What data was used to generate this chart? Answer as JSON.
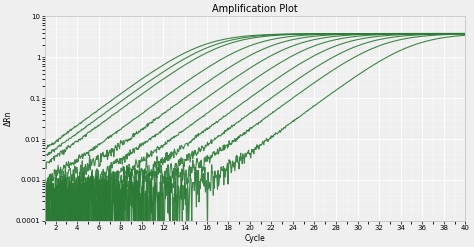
{
  "title": "Amplification Plot",
  "xlabel": "Cycle",
  "ylabel": "ΔRn",
  "xlim": [
    1,
    40
  ],
  "ylim": [
    0.0001,
    10
  ],
  "xticks": [
    2,
    4,
    6,
    8,
    10,
    12,
    14,
    16,
    18,
    20,
    22,
    24,
    26,
    28,
    30,
    32,
    34,
    36,
    38,
    40
  ],
  "yticks": [
    0.0001,
    0.001,
    0.01,
    0.1,
    1,
    10
  ],
  "line_color": "#2a7a35",
  "background_color": "#efefef",
  "line_alpha": 0.9,
  "line_width": 0.8,
  "ct_values": [
    15.5,
    16.5,
    17.5,
    20,
    22,
    24,
    26,
    28,
    30,
    32,
    35
  ],
  "baseline": 0.00025,
  "plateau": 3.8,
  "grid_color": "#ffffff",
  "title_fontsize": 7,
  "label_fontsize": 5.5,
  "tick_fontsize": 5
}
